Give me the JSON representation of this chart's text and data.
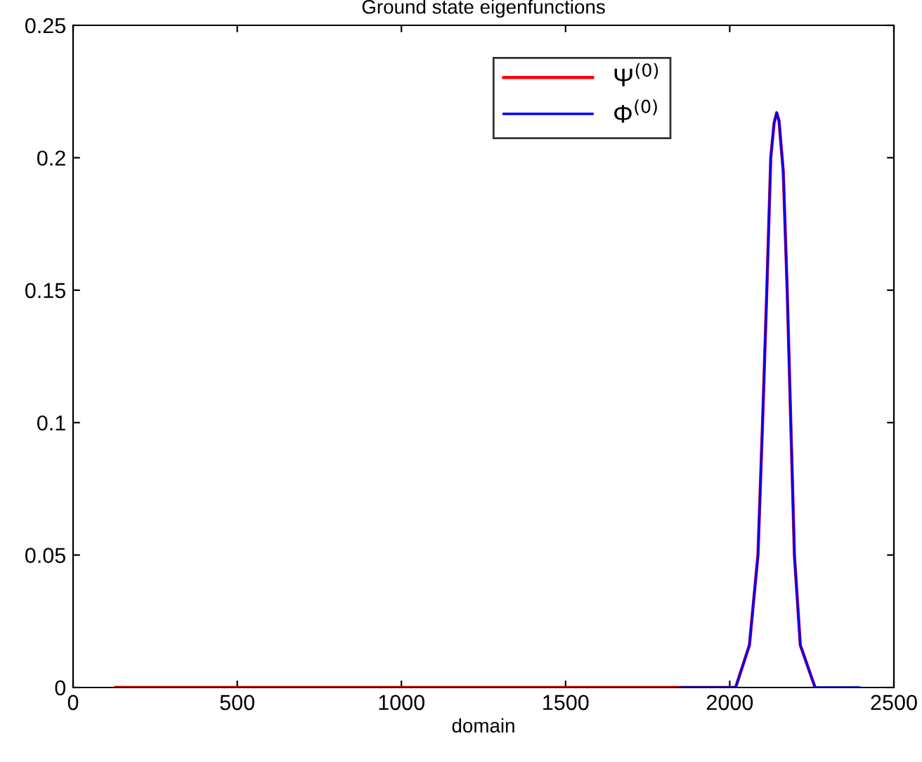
{
  "chart_data": {
    "type": "line",
    "title": "Ground state eigenfunctions",
    "xlabel": "domain",
    "xlim": [
      0,
      2500
    ],
    "xticks": [
      0,
      500,
      1000,
      1500,
      2000,
      2500
    ],
    "ylim": [
      0,
      0.25
    ],
    "yticks": [
      0,
      0.05,
      0.1,
      0.15,
      0.2,
      0.25
    ],
    "grid": false,
    "legend": "top",
    "marker": "none",
    "line_style": "solid",
    "series": [
      {
        "name": "Ψ$^{(0)}$",
        "color": "#ff0000",
        "x": [
          130,
          1000,
          2018,
          2060,
          2086,
          2100,
          2113,
          2125,
          2135,
          2143,
          2150,
          2163,
          2175,
          2186,
          2197,
          2215,
          2260
        ],
        "values": [
          0,
          0,
          0,
          0.016,
          0.05,
          0.1,
          0.15,
          0.2,
          0.213,
          0.217,
          0.214,
          0.195,
          0.15,
          0.1,
          0.05,
          0.016,
          0
        ]
      },
      {
        "name": "Φ$^{(0)}$",
        "color": "#0000ff",
        "x": [
          1850,
          2018,
          2060,
          2086,
          2100,
          2113,
          2125,
          2135,
          2143,
          2150,
          2163,
          2175,
          2186,
          2197,
          2215,
          2260,
          2395
        ],
        "values": [
          0,
          0,
          0.016,
          0.05,
          0.1,
          0.15,
          0.2,
          0.213,
          0.217,
          0.214,
          0.195,
          0.15,
          0.1,
          0.05,
          0.016,
          0,
          0
        ]
      }
    ]
  }
}
